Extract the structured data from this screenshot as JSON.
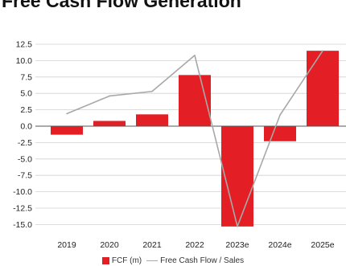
{
  "colors": {
    "bar": "#e31e24",
    "line": "#a8a8a8",
    "grid": "#d0d0d0",
    "axis": "#555555"
  },
  "chart_data": {
    "type": "bar",
    "title": "Free Cash Flow Generation",
    "categories": [
      "2019",
      "2020",
      "2021",
      "2022",
      "2023e",
      "2024e",
      "2025e"
    ],
    "series": [
      {
        "name": "FCF (m)",
        "type": "bar",
        "values": [
          -1.3,
          0.8,
          1.8,
          7.8,
          -15.3,
          -2.3,
          11.5
        ]
      },
      {
        "name": "Free Cash Flow / Sales",
        "type": "line",
        "values": [
          1.9,
          4.6,
          5.3,
          10.8,
          -15.3,
          1.7,
          11.5
        ]
      }
    ],
    "yticks": [
      "12.5",
      "10.0",
      "7.5",
      "5.0",
      "2.5",
      "0.0",
      "-2.5",
      "-5.0",
      "-7.5",
      "-10.0",
      "-12.5",
      "-15.0"
    ],
    "ylim": [
      -16.5,
      13.5
    ],
    "grid": true,
    "legend": "bottom"
  }
}
